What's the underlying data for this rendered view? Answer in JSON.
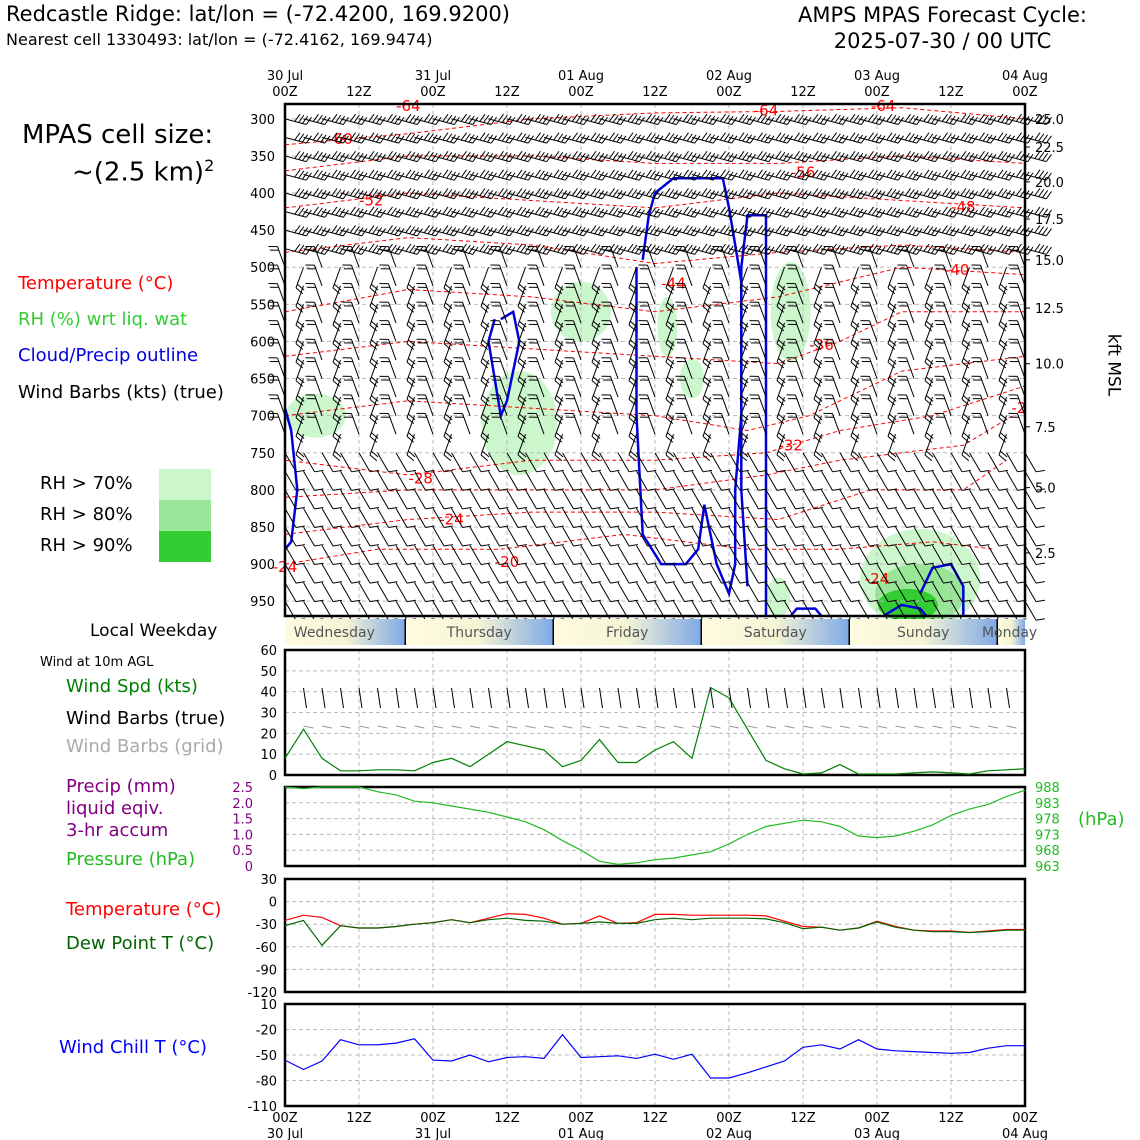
{
  "header": {
    "title_left": "Redcastle Ridge: lat/lon = (-72.4200, 169.9200)",
    "subtitle_left": "Nearest cell 1330493: lat/lon = (-72.4162, 169.9474)",
    "title_right_line1": "AMPS MPAS Forecast Cycle:",
    "title_right_line2": "2025-07-30 / 00 UTC"
  },
  "legend": {
    "cell_size_line1": "MPAS cell size:",
    "cell_size_line2": "~(2.5 km)",
    "cell_size_sup": "2",
    "temperature": "Temperature (°C)",
    "rh": "RH (%) wrt liq. wat",
    "cloud": "Cloud/Precip outline",
    "wind_barbs": "Wind Barbs (kts) (true)",
    "rh70": "RH > 70%",
    "rh80": "RH > 80%",
    "rh90": "RH > 90%",
    "rh_colors": [
      "#ccf7cc",
      "#99e699",
      "#33cc33"
    ]
  },
  "colors": {
    "temperature": "#ff0000",
    "rh": "#33cc33",
    "cloud": "#0000dd",
    "wind_speed": "#008000",
    "precip": "#800080",
    "pressure": "#22bb22",
    "dewpoint": "#006400",
    "wind_chill": "#0000ff",
    "grid_barbs": "#999999"
  },
  "time_axis": {
    "top_dates": [
      "30 Jul",
      "",
      "31 Jul",
      "",
      "01 Aug",
      "",
      "02 Aug",
      "",
      "03 Aug",
      "",
      "04 Aug"
    ],
    "ticks": [
      "00Z",
      "12Z",
      "00Z",
      "12Z",
      "00Z",
      "12Z",
      "00Z",
      "12Z",
      "00Z",
      "12Z",
      "00Z"
    ],
    "bottom_dates": [
      "30 Jul",
      "",
      "31 Jul",
      "",
      "01 Aug",
      "",
      "02 Aug",
      "",
      "03 Aug",
      "",
      "04 Aug"
    ]
  },
  "weekday_bar": {
    "label": "Local Weekday",
    "days": [
      "Wednesday",
      "Thursday",
      "Friday",
      "Saturday",
      "Sunday",
      "Monday"
    ]
  },
  "panel_labels": {
    "wind10m": "Wind at 10m AGL",
    "wind_spd": "Wind Spd (kts)",
    "wind_barbs_true": "Wind Barbs (true)",
    "wind_barbs_grid": "Wind Barbs (grid)",
    "precip_line1": "Precip (mm)",
    "precip_line2": "liquid eqiv.",
    "precip_line3": "3-hr accum",
    "pressure": "Pressure (hPa)",
    "pressure_unit": "(hPa)",
    "temperature": "Temperature (°C)",
    "dewpoint": "Dew Point T (°C)",
    "wind_chill": "Wind Chill T (°C)",
    "kft": "kft MSL"
  },
  "chart_data": [
    {
      "type": "heatmap",
      "title": "",
      "ylabel": "",
      "yticks": [
        300,
        350,
        400,
        450,
        500,
        550,
        600,
        650,
        700,
        750,
        800,
        850,
        900,
        950
      ],
      "ylim": [
        970,
        280
      ],
      "right_ticks": [
        "25.0",
        "22.5",
        "20.0",
        "17.5",
        "15.0",
        "12.5",
        "10.0",
        "7.5",
        "5.0",
        "2.5"
      ],
      "right_tick_pressures": [
        300,
        338,
        385,
        435,
        490,
        555,
        630,
        715,
        797,
        885
      ],
      "xlim_hours": [
        0,
        120
      ],
      "temperature_contour_labels": [
        {
          "label": "-64",
          "hour": 20,
          "p": 283
        },
        {
          "label": "-64",
          "hour": 78,
          "p": 289
        },
        {
          "label": "-64",
          "hour": 97,
          "p": 283
        },
        {
          "label": "-60",
          "hour": 9,
          "p": 327
        },
        {
          "label": "-56",
          "hour": 84,
          "p": 372
        },
        {
          "label": "-52",
          "hour": 14,
          "p": 410
        },
        {
          "label": "-48",
          "hour": 110,
          "p": 419
        },
        {
          "label": "-44",
          "hour": 63,
          "p": 522
        },
        {
          "label": "-40",
          "hour": 109,
          "p": 504
        },
        {
          "label": "-36",
          "hour": 87,
          "p": 605
        },
        {
          "label": "-32",
          "hour": 82,
          "p": 740
        },
        {
          "label": "-28",
          "hour": 22,
          "p": 785
        },
        {
          "label": "-24",
          "hour": 27,
          "p": 840
        },
        {
          "label": "-24",
          "hour": 96,
          "p": 920
        },
        {
          "label": "-24",
          "hour": 0,
          "p": 904
        },
        {
          "label": "-20",
          "hour": 36,
          "p": 897
        },
        {
          "label": "-2",
          "hour": 119,
          "p": 690
        }
      ]
    },
    {
      "type": "line",
      "title": "",
      "ylim": [
        0,
        60
      ],
      "yticks": [
        0,
        10,
        20,
        30,
        40,
        50,
        60
      ],
      "series": [
        {
          "name": "Wind Spd (kts)",
          "x": [
            0,
            3,
            6,
            9,
            12,
            15,
            18,
            21,
            24,
            27,
            30,
            33,
            36,
            39,
            42,
            45,
            48,
            51,
            54,
            57,
            60,
            63,
            66,
            69,
            72,
            75,
            78,
            81,
            84,
            87,
            90,
            93,
            96,
            99,
            102,
            105,
            108,
            111,
            114,
            117,
            120
          ],
          "values": [
            8,
            22,
            8,
            2,
            2,
            2.5,
            2.5,
            2,
            6,
            8,
            4,
            10,
            16,
            14,
            12,
            4,
            7,
            17,
            6,
            6,
            12,
            16,
            8,
            42,
            37,
            22,
            7,
            3,
            0.5,
            1,
            5,
            0.5,
            0.5,
            0.5,
            1,
            1.5,
            1,
            0.5,
            2,
            2.5,
            3
          ]
        }
      ]
    },
    {
      "type": "line",
      "title": "",
      "ylim_left": [
        0,
        2.5
      ],
      "yticks_left": [
        "0",
        "0.5",
        "1.0",
        "1.5",
        "2.0",
        "2.5"
      ],
      "ylim_right": [
        963,
        988
      ],
      "yticks_right": [
        "963",
        "968",
        "973",
        "978",
        "983",
        "988"
      ],
      "series": [
        {
          "name": "Pressure (hPa)",
          "x": [
            0,
            3,
            6,
            9,
            12,
            15,
            18,
            21,
            24,
            27,
            30,
            33,
            36,
            39,
            42,
            45,
            48,
            51,
            54,
            57,
            60,
            63,
            66,
            69,
            72,
            75,
            78,
            81,
            84,
            87,
            90,
            93,
            96,
            99,
            102,
            105,
            108,
            111,
            114,
            117,
            120
          ],
          "values": [
            988,
            987.5,
            988,
            988,
            988,
            986.5,
            985.5,
            983.5,
            983,
            982,
            981,
            980,
            978.5,
            977,
            974.5,
            971,
            968,
            964.5,
            963.5,
            964,
            965,
            965.5,
            966.5,
            967.5,
            970,
            973,
            975.5,
            976.5,
            977.5,
            977,
            975.5,
            972.5,
            972,
            972.5,
            974,
            976,
            979,
            981,
            982.5,
            985,
            987
          ]
        }
      ]
    },
    {
      "type": "line",
      "title": "",
      "ylim": [
        -120,
        30
      ],
      "yticks": [
        30,
        0,
        -30,
        -60,
        -90,
        -120
      ],
      "series": [
        {
          "name": "Temperature (°C)",
          "x": [
            0,
            3,
            6,
            9,
            12,
            15,
            18,
            21,
            24,
            27,
            30,
            33,
            36,
            39,
            42,
            45,
            48,
            51,
            54,
            57,
            60,
            63,
            66,
            69,
            72,
            75,
            78,
            81,
            84,
            87,
            90,
            93,
            96,
            99,
            102,
            105,
            108,
            111,
            114,
            117,
            120
          ],
          "values": [
            -25,
            -18,
            -21,
            -32,
            -35,
            -35,
            -33,
            -30,
            -28,
            -24,
            -28,
            -22,
            -16,
            -17,
            -22,
            -30,
            -29,
            -19,
            -29,
            -28,
            -17,
            -17,
            -18,
            -18,
            -18,
            -18,
            -19,
            -26,
            -33,
            -34,
            -38,
            -35,
            -26,
            -33,
            -38,
            -39,
            -39,
            -41,
            -39,
            -37,
            -37
          ]
        },
        {
          "name": "Dew Point T (°C)",
          "x": [
            0,
            3,
            6,
            9,
            12,
            15,
            18,
            21,
            24,
            27,
            30,
            33,
            36,
            39,
            42,
            45,
            48,
            51,
            54,
            57,
            60,
            63,
            66,
            69,
            72,
            75,
            78,
            81,
            84,
            87,
            90,
            93,
            96,
            99,
            102,
            105,
            108,
            111,
            114,
            117,
            120
          ],
          "values": [
            -32,
            -25,
            -58,
            -32,
            -35,
            -35,
            -33,
            -30,
            -28,
            -24,
            -28,
            -24,
            -22,
            -25,
            -26,
            -30,
            -29,
            -27,
            -29,
            -29,
            -24,
            -22,
            -24,
            -22,
            -22,
            -22,
            -23,
            -28,
            -36,
            -34,
            -38,
            -35,
            -27,
            -34,
            -38,
            -40,
            -40,
            -41,
            -40,
            -38,
            -38
          ]
        }
      ]
    },
    {
      "type": "line",
      "title": "",
      "ylim": [
        -110,
        10
      ],
      "yticks": [
        10,
        -20,
        -50,
        -80,
        -110
      ],
      "series": [
        {
          "name": "Wind Chill T (°C)",
          "x": [
            0,
            3,
            6,
            9,
            12,
            15,
            18,
            21,
            24,
            27,
            30,
            33,
            36,
            39,
            42,
            45,
            48,
            51,
            54,
            57,
            60,
            63,
            66,
            69,
            72,
            75,
            78,
            81,
            84,
            87,
            90,
            93,
            96,
            99,
            102,
            105,
            108,
            111,
            114,
            117,
            120
          ],
          "values": [
            -56,
            -67,
            -57,
            -32,
            -38,
            -38,
            -36,
            -31,
            -56,
            -57,
            -50,
            -58,
            -53,
            -52,
            -54,
            -26,
            -53,
            -52,
            -51,
            -54,
            -49,
            -55,
            -49,
            -77,
            -77,
            -71,
            -64,
            -57,
            -41,
            -38,
            -43,
            -32,
            -43,
            -45,
            -46,
            -47,
            -48,
            -47,
            -42,
            -39,
            -39
          ]
        }
      ]
    }
  ]
}
